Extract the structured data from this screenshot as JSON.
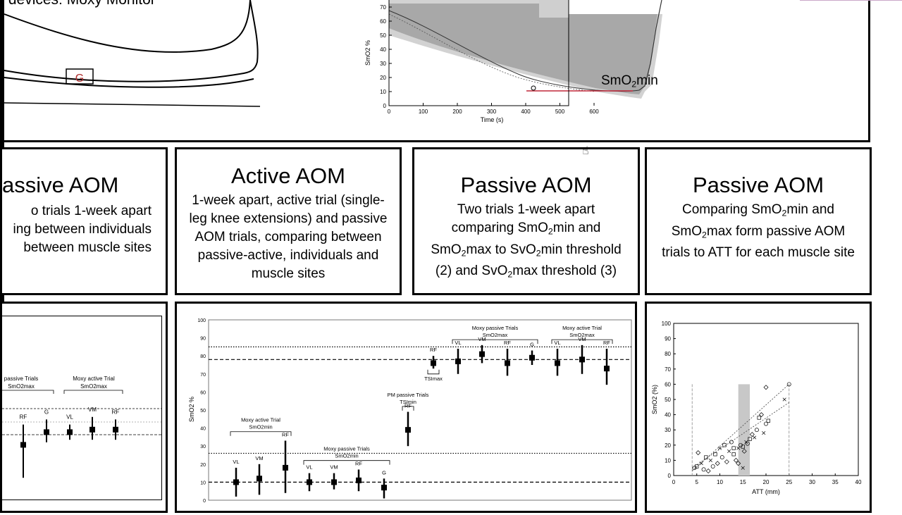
{
  "top_left": {
    "caption": "S devices: Moxy Monitor",
    "site_label": "G"
  },
  "top_chart": {
    "ylabel": "SmO2 %",
    "xlabel": "Time (s)",
    "xticks": [
      "0",
      "100",
      "200",
      "300",
      "400",
      "500",
      "600"
    ],
    "yticks": [
      "0",
      "10",
      "20",
      "30",
      "40",
      "50",
      "60",
      "70"
    ],
    "annotation": {
      "base": "SmO",
      "sub": "2",
      "rest": "min"
    }
  },
  "cards": [
    {
      "title": "assive AOM",
      "lines": [
        "o trials 1-week apart",
        "ing between individuals",
        "between muscle sites"
      ]
    },
    {
      "title": "Active AOM",
      "lines": [
        "1-week apart, active trial (single-",
        "leg knee extensions) and passive",
        "AOM trials, comparing between",
        "passive-active, individuals and",
        "muscle sites"
      ]
    },
    {
      "title": "Passive AOM",
      "lines": [
        "Two trials 1-week apart",
        "comparing SmO{2}min and",
        "SmO{2}max to SvO{2}min threshold",
        "(2) and SvO{2}max threshold (3)"
      ]
    },
    {
      "title": "Passive AOM",
      "lines": [
        "Comparing SmO{2}min and",
        "SmO{2}max form passive AOM",
        "trials to ATT for each muscle site"
      ]
    }
  ],
  "left_chart": {
    "groups": [
      {
        "label": "passive Trials",
        "sub": "SmO2max"
      },
      {
        "label": "Moxy active Trial",
        "sub": "SmO2max"
      }
    ],
    "points": [
      {
        "label": "RF",
        "value": 39,
        "lo": 26,
        "hi": 47
      },
      {
        "label": "G",
        "value": 44,
        "lo": 40,
        "hi": 49
      },
      {
        "label": "VL",
        "value": 44,
        "lo": 41,
        "hi": 47
      },
      {
        "label": "VM",
        "value": 45,
        "lo": 41,
        "hi": 50
      },
      {
        "label": "RF",
        "value": 45,
        "lo": 41,
        "hi": 49
      }
    ]
  },
  "middle_chart": {
    "ylabel": "SmO2 %",
    "yticks": [
      "0",
      "10",
      "20",
      "30",
      "40",
      "50",
      "60",
      "70",
      "80",
      "90",
      "100"
    ],
    "groups": [
      {
        "label": "Moxy active Trial",
        "sub": "SmO2min"
      },
      {
        "label": "Moxy passive Trials",
        "sub": "SmO2min"
      },
      {
        "label": "PM passive Trials",
        "sub": "TSImin"
      },
      {
        "label": "",
        "sub": "TSImax"
      },
      {
        "label": "Moxy passive Trials",
        "sub": "SmO2max"
      },
      {
        "label": "Moxy active Trial",
        "sub": "SmO2max"
      }
    ],
    "chart_data": {
      "type": "scatter",
      "ylim": [
        0,
        100
      ],
      "reference_lines": [
        10,
        26,
        78,
        85
      ],
      "points": [
        {
          "label": "VL",
          "value": 10,
          "lo": 2,
          "hi": 18
        },
        {
          "label": "VM",
          "value": 12,
          "lo": 3,
          "hi": 20
        },
        {
          "label": "RF",
          "value": 18,
          "lo": 4,
          "hi": 33
        },
        {
          "label": "VL",
          "value": 10,
          "lo": 5,
          "hi": 15
        },
        {
          "label": "VM",
          "value": 10,
          "lo": 6,
          "hi": 15
        },
        {
          "label": "RF",
          "value": 11,
          "lo": 5,
          "hi": 17
        },
        {
          "label": "G",
          "value": 7,
          "lo": 1,
          "hi": 12
        },
        {
          "label": "RF",
          "value": 39,
          "lo": 30,
          "hi": 49
        },
        {
          "label": "RF",
          "value": 76,
          "lo": 73,
          "hi": 80
        },
        {
          "label": "VL",
          "value": 77,
          "lo": 70,
          "hi": 84
        },
        {
          "label": "VM",
          "value": 81,
          "lo": 76,
          "hi": 86
        },
        {
          "label": "RF",
          "value": 76,
          "lo": 69,
          "hi": 84
        },
        {
          "label": "G",
          "value": 79,
          "lo": 75,
          "hi": 83
        },
        {
          "label": "VL",
          "value": 76,
          "lo": 69,
          "hi": 84
        },
        {
          "label": "VM",
          "value": 78,
          "lo": 70,
          "hi": 86
        },
        {
          "label": "RF",
          "value": 73,
          "lo": 64,
          "hi": 84
        }
      ]
    }
  },
  "right_chart": {
    "ylabel": "SmO2 (%)",
    "xlabel": "ATT (mm)",
    "xticks": [
      "0",
      "5",
      "10",
      "15",
      "20",
      "25",
      "30",
      "35",
      "40"
    ],
    "yticks": [
      "0",
      "10",
      "20",
      "30",
      "40",
      "50",
      "60",
      "70",
      "80",
      "90",
      "100"
    ],
    "chart_data": {
      "type": "scatter",
      "xlim": [
        0,
        40
      ],
      "ylim": [
        0,
        100
      ],
      "points": [
        [
          4.5,
          5
        ],
        [
          5,
          6
        ],
        [
          5.3,
          15
        ],
        [
          6,
          8
        ],
        [
          6.5,
          4
        ],
        [
          7,
          12
        ],
        [
          7.5,
          3
        ],
        [
          8,
          10
        ],
        [
          8.5,
          6
        ],
        [
          9,
          14
        ],
        [
          9.5,
          8
        ],
        [
          10,
          18
        ],
        [
          10.5,
          12
        ],
        [
          11,
          20
        ],
        [
          11.5,
          9
        ],
        [
          12,
          16
        ],
        [
          12.5,
          22
        ],
        [
          13,
          14
        ],
        [
          13.5,
          10
        ],
        [
          14,
          18
        ],
        [
          14.5,
          20
        ],
        [
          15,
          19
        ],
        [
          15.3,
          16
        ],
        [
          15.7,
          22
        ],
        [
          16,
          21
        ],
        [
          16.5,
          24
        ],
        [
          17,
          27
        ],
        [
          17.5,
          25
        ],
        [
          18,
          30
        ],
        [
          18.5,
          38
        ],
        [
          19,
          40
        ],
        [
          19.5,
          28
        ],
        [
          20,
          34
        ],
        [
          20.5,
          36
        ],
        [
          20,
          58
        ],
        [
          24,
          50
        ],
        [
          25,
          60
        ],
        [
          13,
          18
        ],
        [
          14,
          8
        ],
        [
          15,
          5
        ]
      ]
    }
  }
}
